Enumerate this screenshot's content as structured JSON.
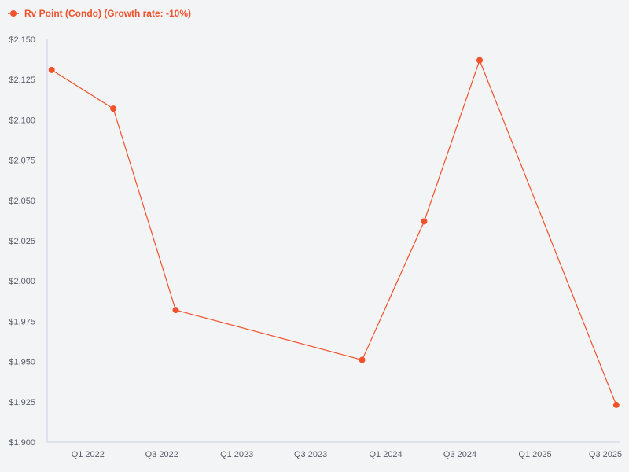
{
  "chart_data": {
    "type": "line",
    "series": [
      {
        "name": "Rv Point (Condo) (Growth rate: -10%)",
        "color": "#f0522b",
        "points": [
          {
            "x": "2021-12-01",
            "y": 2131
          },
          {
            "x": "2022-05-01",
            "y": 2107
          },
          {
            "x": "2022-10-01",
            "y": 1982
          },
          {
            "x": "2024-01-01",
            "y": 1951
          },
          {
            "x": "2024-06-01",
            "y": 2037
          },
          {
            "x": "2024-10-15",
            "y": 2137
          },
          {
            "x": "2025-09-15",
            "y": 1923
          }
        ]
      }
    ],
    "y_ticks": [
      "$2,150",
      "$2,125",
      "$2,100",
      "$2,075",
      "$2,050",
      "$2,025",
      "$2,000",
      "$1,975",
      "$1,950",
      "$1,925",
      "$1,900"
    ],
    "x_ticks": [
      "Q1 2022",
      "Q3 2022",
      "Q1 2023",
      "Q3 2023",
      "Q1 2024",
      "Q3 2024",
      "Q1 2025",
      "Q3 2025"
    ],
    "ylim": [
      1900,
      2150
    ],
    "legend_position": "top-left",
    "grid": false,
    "colors": {
      "background": "#f3f4f6",
      "axis": "#c9cfe0",
      "tick_text": "#555b66"
    }
  }
}
